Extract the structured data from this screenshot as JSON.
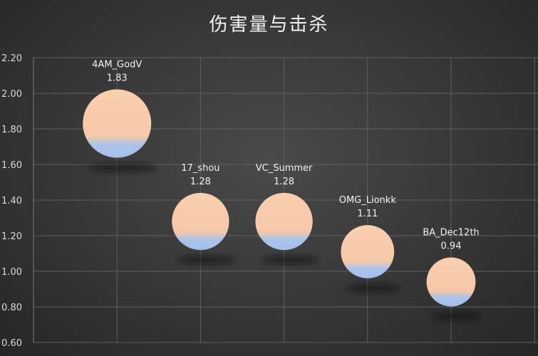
{
  "chart_data": {
    "type": "scatter",
    "title": "伤害量与击杀",
    "xlabel": "",
    "ylabel": "",
    "x": [
      1,
      2,
      3,
      4,
      5
    ],
    "xlim": [
      0,
      6
    ],
    "ylim": [
      0.6,
      2.2
    ],
    "yticks": [
      "0.60",
      "0.80",
      "1.00",
      "1.20",
      "1.40",
      "1.60",
      "1.80",
      "2.00",
      "2.20"
    ],
    "grid": true,
    "legend": "none",
    "points": [
      {
        "label": "4AM_GodV",
        "value": 1.83,
        "value_label": "1.83"
      },
      {
        "label": "17_shou",
        "value": 1.28,
        "value_label": "1.28"
      },
      {
        "label": "VC_Summer",
        "value": 1.28,
        "value_label": "1.28"
      },
      {
        "label": "OMG_Lionkk",
        "value": 1.11,
        "value_label": "1.11"
      },
      {
        "label": "BA_Dec12th",
        "value": 0.94,
        "value_label": "0.94"
      }
    ],
    "colors": {
      "bubble_top": "#f9cfae",
      "bubble_bottom": "#a9c4ec",
      "grid": "#5f5f5f",
      "text": "#f2f2f2"
    }
  }
}
